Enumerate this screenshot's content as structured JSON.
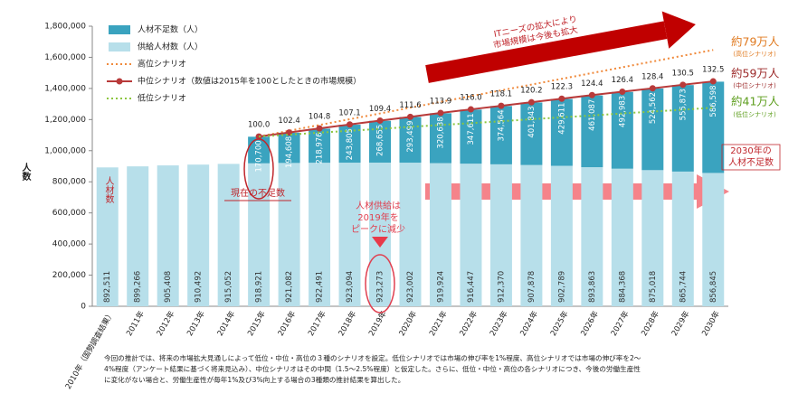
{
  "chart_data": {
    "type": "bar",
    "stacked": true,
    "y_label": "人数",
    "categories": [
      "2010年（国勢調査結果）",
      "2011年",
      "2012年",
      "2013年",
      "2014年",
      "2015年",
      "2016年",
      "2017年",
      "2018年",
      "2019年",
      "2020年",
      "2021年",
      "2022年",
      "2023年",
      "2024年",
      "2025年",
      "2026年",
      "2027年",
      "2028年",
      "2029年",
      "2030年"
    ],
    "series": [
      {
        "name": "人材不足数（人）",
        "color": "#3aa3bf",
        "values": [
          null,
          null,
          null,
          null,
          null,
          170700,
          194608,
          218976,
          243805,
          268655,
          293499,
          320638,
          347611,
          374564,
          401843,
          429611,
          461087,
          492983,
          524562,
          555873,
          586598
        ],
        "value_labels": [
          null,
          null,
          null,
          null,
          null,
          "170,700",
          "194,608",
          "218,976",
          "243,805",
          "268,655",
          "293,499",
          "320,638",
          "347,611",
          "374,564",
          "401,843",
          "429,611",
          "461,087",
          "492,983",
          "524,562",
          "555,873",
          "586,598"
        ]
      },
      {
        "name": "供給人材数（人）",
        "color": "#b7dfea",
        "values": [
          892511,
          899266,
          905408,
          910492,
          915052,
          918921,
          921082,
          922491,
          923094,
          923273,
          923002,
          919924,
          916447,
          912370,
          907878,
          902789,
          893863,
          884368,
          875018,
          865744,
          856845
        ],
        "value_labels": [
          "892,511",
          "899,266",
          "905,408",
          "910,492",
          "915,052",
          "918,921",
          "921,082",
          "922,491",
          "923,094",
          "923,273",
          "923,002",
          "919,924",
          "916,447",
          "912,370",
          "907,878",
          "902,789",
          "893,863",
          "884,368",
          "875,018",
          "865,744",
          "856,845"
        ]
      },
      {
        "name": "高位シナリオ",
        "type": "line",
        "axis": "y2",
        "color": "#f08a3c",
        "dash": true,
        "values": [
          null,
          null,
          null,
          null,
          null,
          100,
          103.4,
          106.8,
          110.2,
          113.6,
          117,
          120.4,
          123.8,
          127.2,
          130.6,
          134,
          137.4,
          140.8,
          144.2,
          147.6,
          151
        ]
      },
      {
        "name": "中位シナリオ（数値は2015年を100としたときの市場規模）",
        "type": "line",
        "axis": "y2",
        "color": "#b83a3a",
        "markers": true,
        "values": [
          null,
          null,
          null,
          null,
          null,
          100,
          102.4,
          104.8,
          107.1,
          109.4,
          111.6,
          113.9,
          116,
          118.1,
          120.2,
          122.3,
          124.4,
          126.4,
          128.4,
          130.5,
          132.5
        ],
        "value_labels": [
          null,
          null,
          null,
          null,
          null,
          "100.0",
          "102.4",
          "104.8",
          "107.1",
          "109.4",
          "111.6",
          "113.9",
          "116.0",
          "118.1",
          "120.2",
          "122.3",
          "124.4",
          "126.4",
          "128.4",
          "130.5",
          "132.5"
        ]
      },
      {
        "name": "低位シナリオ",
        "type": "line",
        "axis": "y2",
        "color": "#8cc63f",
        "dash": true,
        "values": [
          null,
          null,
          null,
          null,
          null,
          100,
          101.1,
          102.3,
          103.4,
          104.5,
          105.7,
          106.8,
          107.9,
          109,
          110.2,
          111.3,
          112.4,
          113.6,
          114.7,
          115.8,
          117
        ]
      }
    ],
    "ylim": [
      0,
      1800000
    ],
    "yticks": [
      {
        "value": 0,
        "label": "0"
      },
      {
        "value": 200000,
        "label": "200,000"
      },
      {
        "value": 400000,
        "label": "400,000"
      },
      {
        "value": 600000,
        "label": "600,000"
      },
      {
        "value": 800000,
        "label": "800,000"
      },
      {
        "value": 1000000,
        "label": "1,000,000"
      },
      {
        "value": 1200000,
        "label": "1,200,000"
      },
      {
        "value": 1400000,
        "label": "1,400,000"
      },
      {
        "value": 1600000,
        "label": "1,600,000"
      },
      {
        "value": 1800000,
        "label": "1,800,000"
      }
    ],
    "y2lim": [
      0,
      165
    ],
    "grid": false,
    "legend": "top-left",
    "annotations": {
      "it_growth": [
        "ITニーズの拡大により",
        "市場規模は今後も拡大"
      ],
      "high_label": "約79万人",
      "high_sub": "(高位シナリオ)",
      "mid_label": "約59万人",
      "mid_sub": "(中位シナリオ)",
      "low_label": "約41万人",
      "low_sub": "(低位シナリオ)",
      "shortage_2030": [
        "2030年の",
        "人材不足数"
      ],
      "supply_word": "人材数",
      "current_shortage": "現在の不足数",
      "supply_peak": [
        "人材供給は",
        "2019年を",
        "ピークに減少"
      ]
    },
    "footnote": [
      "今回の推計では、将来の市場拡大見通しによって低位・中位・高位の３種のシナリオを設定。低位シナリオでは市場の伸び率を1%程度、高位シナリオでは市場の伸び率を2～",
      "4%程度（アンケート結果に基づく将来見込み）、中位シナリオはその中間（1.5～2.5%程度）と仮定した。さらに、低位・中位・高位の各シナリオにつき、今後の労働生産性",
      "に変化がない場合と、労働生産性が毎年1%及び3%向上する場合の3種類の推計結果を算出した。"
    ]
  }
}
